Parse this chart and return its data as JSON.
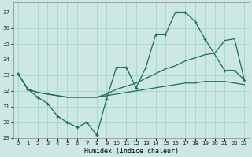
{
  "xlabel": "Humidex (Indice chaleur)",
  "background_color": "#cde8e4",
  "grid_color": "#a8d8d0",
  "line_color": "#1a6b5a",
  "xlim": [
    -0.5,
    23.5
  ],
  "ylim": [
    29,
    37.6
  ],
  "yticks": [
    29,
    30,
    31,
    32,
    33,
    34,
    35,
    36,
    37
  ],
  "xticks": [
    0,
    1,
    2,
    3,
    4,
    5,
    6,
    7,
    8,
    9,
    10,
    11,
    12,
    13,
    14,
    15,
    16,
    17,
    18,
    19,
    20,
    21,
    22,
    23
  ],
  "series1_x": [
    0,
    1,
    2,
    3,
    4,
    5,
    6,
    7,
    8,
    9,
    10,
    11,
    12,
    13,
    14,
    15,
    16,
    17,
    18,
    19,
    21,
    22,
    23
  ],
  "series1_y": [
    33.1,
    32.1,
    31.6,
    31.2,
    30.4,
    30.0,
    29.7,
    30.0,
    29.2,
    31.5,
    33.5,
    33.5,
    32.2,
    33.5,
    35.6,
    35.6,
    37.0,
    37.0,
    36.4,
    35.3,
    33.3,
    33.3,
    32.7
  ],
  "series2_x": [
    0,
    1,
    2,
    3,
    4,
    5,
    6,
    7,
    8,
    9,
    10,
    11,
    12,
    13,
    14,
    15,
    16,
    17,
    18,
    19,
    20,
    21,
    22,
    23
  ],
  "series2_y": [
    33.1,
    32.1,
    31.9,
    31.8,
    31.7,
    31.6,
    31.6,
    31.6,
    31.6,
    31.7,
    31.8,
    31.9,
    32.0,
    32.1,
    32.2,
    32.3,
    32.4,
    32.5,
    32.5,
    32.6,
    32.6,
    32.6,
    32.5,
    32.4
  ],
  "series3_x": [
    0,
    1,
    2,
    3,
    4,
    5,
    6,
    7,
    8,
    9,
    10,
    11,
    12,
    13,
    14,
    15,
    16,
    17,
    18,
    19,
    20,
    21,
    22,
    23
  ],
  "series3_y": [
    33.1,
    32.1,
    31.9,
    31.8,
    31.7,
    31.6,
    31.6,
    31.6,
    31.6,
    31.8,
    32.1,
    32.3,
    32.5,
    32.8,
    33.1,
    33.4,
    33.6,
    33.9,
    34.1,
    34.3,
    34.4,
    35.2,
    35.3,
    32.7
  ]
}
